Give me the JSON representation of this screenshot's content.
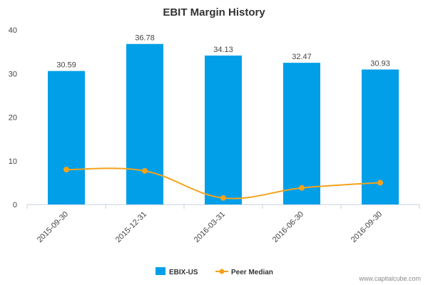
{
  "chart_data": {
    "type": "bar",
    "title": "EBIT Margin History",
    "categories": [
      "2015-09-30",
      "2015-12-31",
      "2016-03-31",
      "2016-06-30",
      "2016-09-30"
    ],
    "series": [
      {
        "name": "EBIX-US",
        "type": "bar",
        "color": "#009fe8",
        "values": [
          30.59,
          36.78,
          34.13,
          32.47,
          30.93
        ],
        "data_labels": [
          "30.59",
          "36.78",
          "34.13",
          "32.47",
          "30.93"
        ]
      },
      {
        "name": "Peer Median",
        "type": "line",
        "color": "#f5a21b",
        "values": [
          8.0,
          7.7,
          1.5,
          3.8,
          5.0
        ]
      }
    ],
    "ylim": [
      0,
      40
    ],
    "yticks": [
      0,
      10,
      20,
      30,
      40
    ],
    "xlabel": "",
    "ylabel": "",
    "grid": false,
    "legend_position": "bottom-center"
  },
  "watermark": "www.capitalcube.com"
}
